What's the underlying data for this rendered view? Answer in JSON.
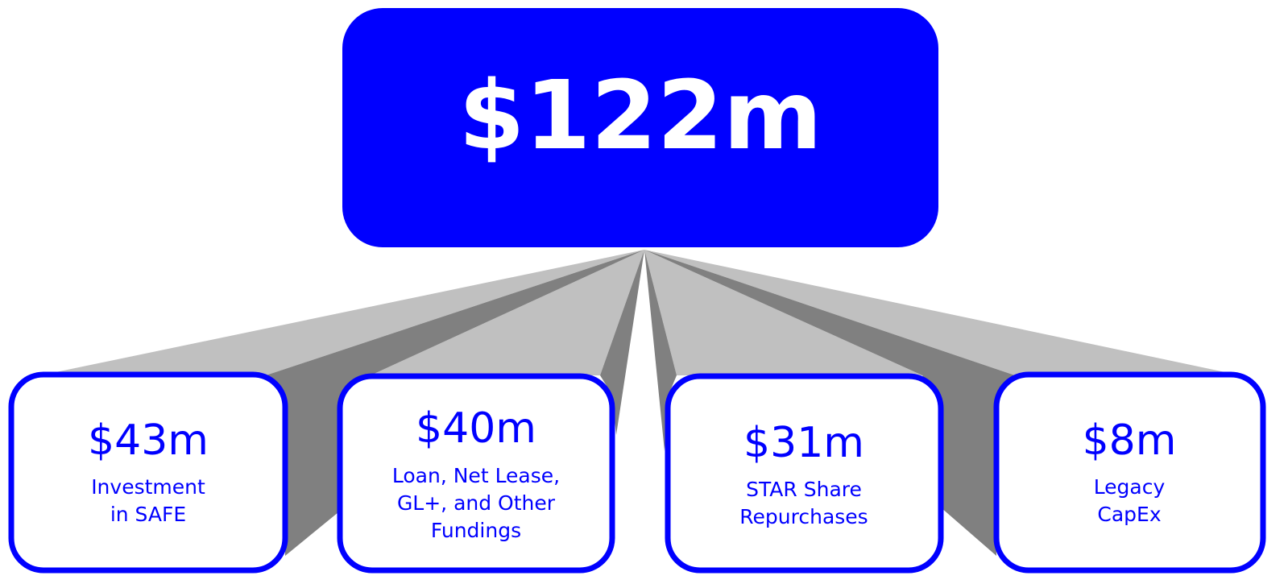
{
  "total": "$122m",
  "boxes": [
    {
      "amount": "$43m",
      "lines": [
        "Investment",
        "in SAFE"
      ]
    },
    {
      "amount": "$40m",
      "lines": [
        "Loan, Net Lease,",
        "GL+, and Other",
        "Fundings"
      ]
    },
    {
      "amount": "$31m",
      "lines": [
        "STAR Share",
        "Repurchases"
      ]
    },
    {
      "amount": "$8m",
      "lines": [
        "Legacy",
        "CapEx"
      ]
    }
  ]
}
